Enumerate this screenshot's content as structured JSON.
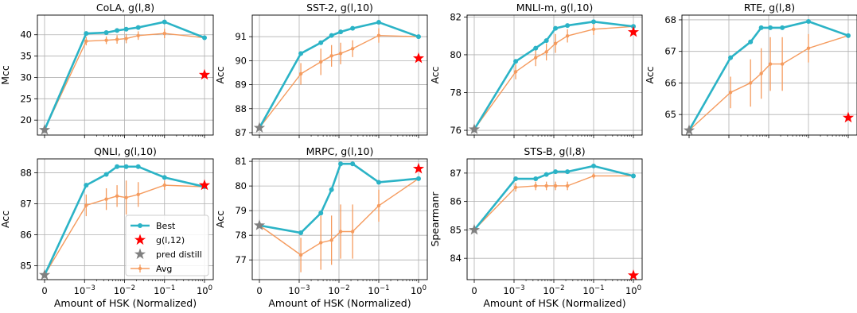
{
  "figure": {
    "xlabel": "Amount of HSK (Normalized)",
    "x_tick_labels": [
      "0",
      "10",
      "10",
      "10",
      "10"
    ],
    "x_tick_exponents": [
      "",
      "−3",
      "−2",
      "−1",
      "0"
    ],
    "legend": {
      "placement": "lower-right of QNLI panel",
      "entries": [
        "Best",
        "g(l,12)",
        "pred distill",
        "Avg"
      ]
    },
    "colors": {
      "best": "#2bb3c6",
      "avg": "#f59b5e",
      "star_red": "#ff0000",
      "star_gray": "#808080",
      "grid": "#b0b0b0"
    }
  },
  "chart_data": [
    {
      "type": "line",
      "title": "CoLA, g(l,8)",
      "ylabel": "Mcc",
      "xscale": "symlog",
      "ylim": [
        16.5,
        44.6
      ],
      "yticks": [
        20,
        25,
        30,
        35,
        40
      ],
      "grid": true,
      "best": {
        "x": [
          0.0011,
          0.0035,
          0.0065,
          0.011,
          0.022,
          0.1,
          1
        ],
        "y": [
          40.3,
          40.5,
          41.0,
          41.3,
          41.7,
          43.0,
          39.3
        ]
      },
      "avg": {
        "x": [
          0.0011,
          0.0035,
          0.0065,
          0.011,
          0.022,
          0.1,
          1
        ],
        "y": [
          38.5,
          38.7,
          38.9,
          39.1,
          39.8,
          40.3,
          39.3
        ],
        "err": [
          1.0,
          0.9,
          1.0,
          1.1,
          1.0,
          1.1,
          0.2
        ]
      },
      "pred_distill": {
        "x": 0,
        "y": 17.7
      },
      "g_l12": {
        "x": 1,
        "y": 30.6
      }
    },
    {
      "type": "line",
      "title": "SST-2, g(l,10)",
      "ylabel": "Acc",
      "xscale": "symlog",
      "ylim": [
        86.9,
        91.9
      ],
      "yticks": [
        87,
        88,
        89,
        90,
        91
      ],
      "grid": true,
      "best": {
        "x": [
          0.0011,
          0.0035,
          0.0065,
          0.011,
          0.022,
          0.1,
          1
        ],
        "y": [
          90.3,
          90.75,
          91.05,
          91.2,
          91.35,
          91.6,
          91.0
        ]
      },
      "avg": {
        "x": [
          0.0011,
          0.0035,
          0.0065,
          0.011,
          0.022,
          0.1,
          1
        ],
        "y": [
          89.45,
          89.95,
          90.2,
          90.3,
          90.5,
          91.05,
          91.0
        ],
        "err": [
          0.45,
          0.55,
          0.45,
          0.45,
          0.35,
          0.3,
          0.05
        ]
      },
      "pred_distill": {
        "x": 0,
        "y": 87.2
      },
      "g_l12": {
        "x": 1,
        "y": 90.1
      }
    },
    {
      "type": "line",
      "title": "MNLI-m, g(l,10)",
      "ylabel": "Acc",
      "xscale": "symlog",
      "ylim": [
        75.75,
        82.1
      ],
      "yticks": [
        76,
        78,
        80,
        82
      ],
      "grid": true,
      "best": {
        "x": [
          0.0011,
          0.0035,
          0.0065,
          0.011,
          0.022,
          0.1,
          1
        ],
        "y": [
          79.65,
          80.35,
          80.75,
          81.4,
          81.55,
          81.75,
          81.5
        ]
      },
      "avg": {
        "x": [
          0.0011,
          0.0035,
          0.0065,
          0.011,
          0.022,
          0.1,
          1
        ],
        "y": [
          79.1,
          79.85,
          80.15,
          80.6,
          81.0,
          81.35,
          81.5
        ],
        "err": [
          0.4,
          0.45,
          0.45,
          0.5,
          0.35,
          0.3,
          0.05
        ]
      },
      "pred_distill": {
        "x": 0,
        "y": 76.05
      },
      "g_l12": {
        "x": 1,
        "y": 81.2
      }
    },
    {
      "type": "line",
      "title": "RTE, g(l,8)",
      "ylabel": "Acc",
      "xscale": "symlog",
      "ylim": [
        64.35,
        68.15
      ],
      "yticks": [
        65,
        66,
        67,
        68
      ],
      "grid": true,
      "best": {
        "x": [
          0.0011,
          0.0035,
          0.0065,
          0.011,
          0.022,
          0.1,
          1
        ],
        "y": [
          66.8,
          67.3,
          67.75,
          67.75,
          67.75,
          67.95,
          67.5
        ]
      },
      "avg": {
        "x": [
          0.0011,
          0.0035,
          0.0065,
          0.011,
          0.022,
          0.1,
          1
        ],
        "y": [
          65.7,
          66.0,
          66.3,
          66.6,
          66.6,
          67.1,
          67.5
        ],
        "err": [
          0.5,
          0.75,
          0.8,
          0.85,
          0.85,
          0.45,
          0.05
        ]
      },
      "pred_distill": {
        "x": 0,
        "y": 64.5
      },
      "g_l12": {
        "x": 1,
        "y": 64.9
      }
    },
    {
      "type": "line",
      "title": "QNLI, g(l,10)",
      "ylabel": "Acc",
      "xscale": "symlog",
      "ylim": [
        84.55,
        88.45
      ],
      "yticks": [
        85,
        86,
        87,
        88
      ],
      "grid": true,
      "best": {
        "x": [
          0.0011,
          0.0035,
          0.0065,
          0.011,
          0.022,
          0.1,
          1
        ],
        "y": [
          87.6,
          87.95,
          88.2,
          88.2,
          88.2,
          87.85,
          87.55
        ]
      },
      "avg": {
        "x": [
          0.0011,
          0.0035,
          0.0065,
          0.011,
          0.022,
          0.1,
          1
        ],
        "y": [
          86.95,
          87.15,
          87.25,
          87.2,
          87.3,
          87.6,
          87.55
        ],
        "err": [
          0.35,
          0.35,
          0.35,
          0.55,
          0.4,
          0.15,
          0.05
        ]
      },
      "pred_distill": {
        "x": 0,
        "y": 84.7
      },
      "g_l12": {
        "x": 1,
        "y": 87.6
      }
    },
    {
      "type": "line",
      "title": "MRPC, g(l,10)",
      "ylabel": "Acc",
      "xscale": "symlog",
      "ylim": [
        76.2,
        81.1
      ],
      "yticks": [
        77,
        78,
        79,
        80,
        81
      ],
      "grid": true,
      "best": {
        "x": [
          0.0011,
          0.0035,
          0.0065,
          0.011,
          0.022,
          0.1,
          1
        ],
        "y": [
          78.1,
          78.9,
          79.85,
          80.9,
          80.9,
          80.15,
          80.3
        ]
      },
      "avg": {
        "x": [
          0.0011,
          0.0035,
          0.0065,
          0.011,
          0.022,
          0.1,
          1
        ],
        "y": [
          77.2,
          77.7,
          77.8,
          78.15,
          78.15,
          79.2,
          80.3
        ],
        "err": [
          0.7,
          1.1,
          1.0,
          1.1,
          1.1,
          0.65,
          0.05
        ]
      },
      "pred_distill": {
        "x": 0,
        "y": 78.4
      },
      "g_l12": {
        "x": 1,
        "y": 80.7
      }
    },
    {
      "type": "line",
      "title": "STS-B, g(l,8)",
      "ylabel": "Spearmanr",
      "xscale": "symlog",
      "ylim": [
        83.25,
        87.5
      ],
      "yticks": [
        84,
        85,
        86,
        87
      ],
      "grid": true,
      "best": {
        "x": [
          0.0011,
          0.0035,
          0.0065,
          0.011,
          0.022,
          0.1,
          1
        ],
        "y": [
          86.8,
          86.8,
          86.95,
          87.05,
          87.05,
          87.25,
          86.9
        ]
      },
      "avg": {
        "x": [
          0.0011,
          0.0035,
          0.0065,
          0.011,
          0.022,
          0.1,
          1
        ],
        "y": [
          86.5,
          86.55,
          86.55,
          86.55,
          86.55,
          86.9,
          86.9
        ],
        "err": [
          0.15,
          0.15,
          0.15,
          0.15,
          0.15,
          0.1,
          0.05
        ]
      },
      "pred_distill": {
        "x": 0,
        "y": 85.0
      },
      "g_l12": {
        "x": 1,
        "y": 83.4
      }
    }
  ]
}
